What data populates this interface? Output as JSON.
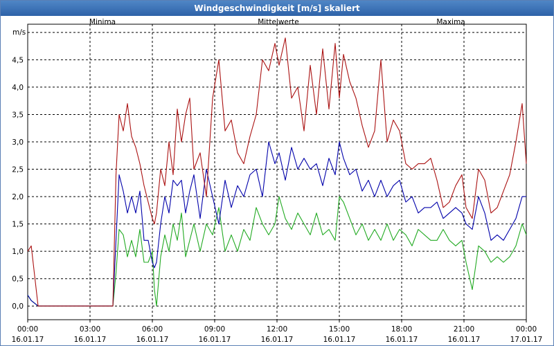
{
  "window": {
    "title": "Windgeschwindigkeit [m/s] skaliert"
  },
  "colors": {
    "minima": "#22aa22",
    "mittel": "#0000aa",
    "maxima": "#aa1111",
    "grid": "#000000"
  },
  "chart_data": {
    "type": "line",
    "title": "Windgeschwindigkeit [m/s] skaliert",
    "ylabel": "m/s",
    "xlabel": "",
    "ylim": [
      -0.25,
      5.15
    ],
    "xlim_hours": [
      0,
      24
    ],
    "yticks": [
      "0,0",
      "0,5",
      "1,0",
      "1,5",
      "2,0",
      "2,5",
      "3,0",
      "3,5",
      "4,0",
      "4,5"
    ],
    "ytick_values": [
      0,
      0.5,
      1.0,
      1.5,
      2.0,
      2.5,
      3.0,
      3.5,
      4.0,
      4.5
    ],
    "xticks": [
      {
        "hour": 0,
        "time": "00:00",
        "date": "16.01.17"
      },
      {
        "hour": 3,
        "time": "03:00",
        "date": "16.01.17"
      },
      {
        "hour": 6,
        "time": "06:00",
        "date": "16.01.17"
      },
      {
        "hour": 9,
        "time": "09:00",
        "date": "16.01.17"
      },
      {
        "hour": 12,
        "time": "12:00",
        "date": "16.01.17"
      },
      {
        "hour": 15,
        "time": "15:00",
        "date": "16.01.17"
      },
      {
        "hour": 18,
        "time": "18:00",
        "date": "16.01.17"
      },
      {
        "hour": 21,
        "time": "21:00",
        "date": "16.01.17"
      },
      {
        "hour": 24,
        "time": "00:00",
        "date": "17.01.17"
      }
    ],
    "series": [
      {
        "name": "Minima",
        "x": [
          0,
          0.17,
          0.5,
          4.1,
          4.25,
          4.4,
          4.6,
          4.8,
          5.0,
          5.2,
          5.4,
          5.6,
          5.8,
          6.0,
          6.1,
          6.2,
          6.4,
          6.6,
          6.8,
          7.0,
          7.2,
          7.4,
          7.6,
          7.8,
          8.0,
          8.3,
          8.6,
          8.9,
          9.2,
          9.5,
          9.8,
          10.1,
          10.4,
          10.7,
          11.0,
          11.3,
          11.6,
          11.9,
          12.1,
          12.4,
          12.7,
          13.0,
          13.3,
          13.6,
          13.9,
          14.2,
          14.5,
          14.8,
          15.0,
          15.2,
          15.5,
          15.8,
          16.1,
          16.4,
          16.7,
          17.0,
          17.3,
          17.6,
          17.9,
          18.2,
          18.5,
          18.8,
          19.1,
          19.4,
          19.7,
          20.0,
          20.3,
          20.6,
          20.9,
          21.1,
          21.4,
          21.7,
          22.0,
          22.3,
          22.6,
          22.9,
          23.2,
          23.5,
          23.8,
          24.0
        ],
        "values": [
          0.2,
          0.1,
          0,
          0,
          0.6,
          1.4,
          1.3,
          0.9,
          1.2,
          0.9,
          1.4,
          0.8,
          0.8,
          1.0,
          0.3,
          0.0,
          0.9,
          1.3,
          1.0,
          1.5,
          1.2,
          1.7,
          0.9,
          1.2,
          1.5,
          1.0,
          1.5,
          1.3,
          1.8,
          1.0,
          1.3,
          1.0,
          1.4,
          1.2,
          1.8,
          1.5,
          1.3,
          1.5,
          2.0,
          1.6,
          1.4,
          1.7,
          1.5,
          1.3,
          1.7,
          1.3,
          1.4,
          1.2,
          2.0,
          1.9,
          1.6,
          1.3,
          1.5,
          1.2,
          1.4,
          1.2,
          1.5,
          1.2,
          1.4,
          1.3,
          1.1,
          1.4,
          1.3,
          1.2,
          1.2,
          1.4,
          1.2,
          1.1,
          1.2,
          0.8,
          0.3,
          1.1,
          1.0,
          0.8,
          0.9,
          0.8,
          0.9,
          1.1,
          1.5,
          1.3
        ]
      },
      {
        "name": "Mittelwerte",
        "x": [
          0,
          0.17,
          0.5,
          4.1,
          4.25,
          4.4,
          4.6,
          4.8,
          5.0,
          5.2,
          5.4,
          5.6,
          5.8,
          6.0,
          6.1,
          6.2,
          6.4,
          6.6,
          6.8,
          7.0,
          7.2,
          7.4,
          7.6,
          7.8,
          8.0,
          8.3,
          8.6,
          8.9,
          9.2,
          9.5,
          9.8,
          10.1,
          10.4,
          10.7,
          11.0,
          11.3,
          11.6,
          11.9,
          12.1,
          12.4,
          12.7,
          13.0,
          13.3,
          13.6,
          13.9,
          14.2,
          14.5,
          14.8,
          15.0,
          15.2,
          15.5,
          15.8,
          16.1,
          16.4,
          16.7,
          17.0,
          17.3,
          17.6,
          17.9,
          18.2,
          18.5,
          18.8,
          19.1,
          19.4,
          19.7,
          20.0,
          20.3,
          20.6,
          20.9,
          21.1,
          21.4,
          21.7,
          22.0,
          22.3,
          22.6,
          22.9,
          23.2,
          23.5,
          23.8,
          24.0
        ],
        "values": [
          0.2,
          0.1,
          0,
          0,
          1.2,
          2.4,
          2.1,
          1.7,
          2.0,
          1.7,
          2.1,
          1.2,
          1.2,
          0.8,
          0.7,
          0.8,
          1.5,
          2.0,
          1.7,
          2.3,
          2.2,
          2.3,
          1.7,
          2.1,
          2.4,
          1.6,
          2.5,
          2.0,
          1.5,
          2.3,
          1.8,
          2.2,
          2.0,
          2.4,
          2.5,
          2.0,
          3.0,
          2.6,
          2.8,
          2.3,
          2.9,
          2.5,
          2.7,
          2.5,
          2.6,
          2.2,
          2.7,
          2.4,
          3.0,
          2.7,
          2.4,
          2.5,
          2.1,
          2.3,
          2.0,
          2.3,
          2.0,
          2.2,
          2.3,
          1.9,
          2.0,
          1.7,
          1.8,
          1.8,
          1.9,
          1.6,
          1.7,
          1.8,
          1.7,
          1.5,
          1.4,
          2.0,
          1.7,
          1.2,
          1.3,
          1.2,
          1.4,
          1.6,
          2.0,
          2.0
        ]
      },
      {
        "name": "Maxima",
        "x": [
          0,
          0.17,
          0.5,
          4.1,
          4.25,
          4.4,
          4.6,
          4.8,
          5.0,
          5.2,
          5.4,
          5.6,
          5.8,
          6.0,
          6.1,
          6.2,
          6.4,
          6.6,
          6.8,
          7.0,
          7.2,
          7.4,
          7.6,
          7.8,
          8.0,
          8.3,
          8.6,
          8.9,
          9.2,
          9.5,
          9.8,
          10.1,
          10.4,
          10.7,
          11.0,
          11.3,
          11.6,
          11.9,
          12.1,
          12.4,
          12.7,
          13.0,
          13.3,
          13.6,
          13.9,
          14.2,
          14.5,
          14.8,
          15.0,
          15.2,
          15.5,
          15.8,
          16.1,
          16.4,
          16.7,
          17.0,
          17.3,
          17.6,
          17.9,
          18.2,
          18.5,
          18.8,
          19.1,
          19.4,
          19.7,
          20.0,
          20.3,
          20.6,
          20.9,
          21.1,
          21.4,
          21.7,
          22.0,
          22.3,
          22.6,
          22.9,
          23.2,
          23.5,
          23.8,
          24.0
        ],
        "values": [
          1.0,
          1.1,
          0,
          0,
          2.4,
          3.5,
          3.2,
          3.7,
          3.1,
          2.9,
          2.6,
          2.2,
          1.9,
          1.6,
          1.5,
          1.7,
          2.5,
          2.2,
          3.0,
          2.4,
          3.6,
          3.0,
          3.5,
          3.8,
          2.5,
          2.8,
          2.0,
          3.8,
          4.5,
          3.2,
          3.4,
          2.8,
          2.6,
          3.1,
          3.5,
          4.5,
          4.3,
          4.8,
          4.4,
          4.9,
          3.8,
          4.0,
          3.2,
          4.4,
          3.5,
          4.7,
          3.6,
          4.8,
          3.8,
          4.6,
          4.1,
          3.8,
          3.3,
          2.9,
          3.2,
          4.5,
          3.0,
          3.4,
          3.2,
          2.6,
          2.5,
          2.6,
          2.6,
          2.7,
          2.3,
          1.8,
          1.9,
          2.2,
          2.4,
          1.8,
          1.6,
          2.5,
          2.3,
          1.7,
          1.8,
          2.1,
          2.4,
          3.0,
          3.7,
          2.6
        ]
      }
    ],
    "legend": {
      "placement": "top",
      "labels": [
        "Minima",
        "Mittelwerte",
        "Maxima"
      ]
    }
  }
}
